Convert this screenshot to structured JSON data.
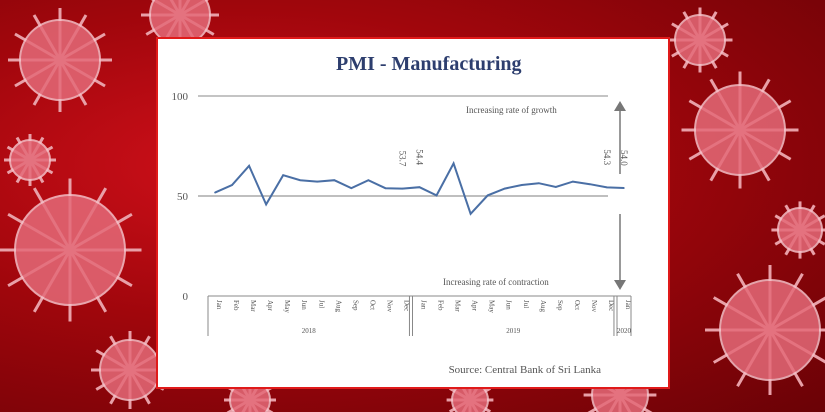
{
  "chart_data": {
    "type": "line",
    "title": "PMI - Manufacturing",
    "categories": [
      "Jan",
      "Feb",
      "Mar",
      "Apr",
      "May",
      "Jun",
      "Jul",
      "Aug",
      "Sep",
      "Oct",
      "Nov",
      "Dec",
      "Jan",
      "Feb",
      "Mar",
      "Apr",
      "May",
      "Jun",
      "Jul",
      "Aug",
      "Sep",
      "Oct",
      "Nov",
      "Dec",
      "Jan"
    ],
    "years": [
      {
        "label": "2018",
        "start": 0,
        "end": 11
      },
      {
        "label": "2019",
        "start": 12,
        "end": 23
      },
      {
        "label": "2020",
        "start": 24,
        "end": 24
      }
    ],
    "values": [
      51.7,
      55.5,
      65.1,
      45.8,
      60.4,
      57.9,
      57.2,
      57.9,
      53.9,
      57.9,
      53.9,
      53.7,
      54.4,
      50.3,
      66.3,
      41.1,
      50.3,
      53.7,
      55.5,
      56.4,
      54.5,
      57.2,
      55.9,
      54.3,
      54.0
    ],
    "data_labels": [
      {
        "index": 11,
        "text": "53.7"
      },
      {
        "index": 12,
        "text": "54.4"
      },
      {
        "index": 23,
        "text": "54.3"
      },
      {
        "index": 24,
        "text": "54.0"
      }
    ],
    "yticks": [
      "0",
      "50",
      "100"
    ],
    "ylim": [
      0,
      100
    ],
    "reference_line": 50,
    "annotations": {
      "growth": "Increasing rate of growth",
      "contraction": "Increasing rate of contraction"
    },
    "source": "Source: Central Bank of Sri Lanka",
    "line_color": "#4a6fa5"
  }
}
